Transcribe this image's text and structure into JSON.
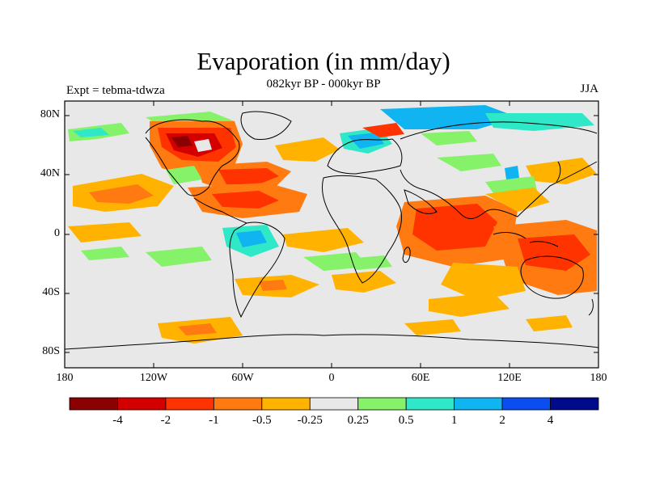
{
  "header": {
    "title": "Evaporation (in mm/day)",
    "subtitle": "082kyr BP - 000kyr BP",
    "left_label": "Expt = tebma-tdwza",
    "right_label": "JJA"
  },
  "axes": {
    "lat_labels": [
      "80N",
      "40N",
      "0",
      "40S",
      "80S"
    ],
    "lon_labels": [
      "180",
      "120W",
      "60W",
      "0",
      "60E",
      "120E",
      "180"
    ]
  },
  "colorbar": {
    "colors": [
      "#8b0000",
      "#d40000",
      "#ff3300",
      "#ff7a10",
      "#ffb300",
      "#e8e8e8",
      "#86f26a",
      "#2ee8c8",
      "#0fb4f0",
      "#0a4ef0",
      "#000a8a"
    ],
    "labels": [
      "-4",
      "-2",
      "-1",
      "-0.5",
      "-0.25",
      "0.25",
      "0.5",
      "1",
      "2",
      "4"
    ]
  },
  "map": {
    "background_color": "#e8e8e8",
    "lon_range": [
      -180,
      180
    ],
    "lat_range": [
      -90,
      90
    ]
  }
}
